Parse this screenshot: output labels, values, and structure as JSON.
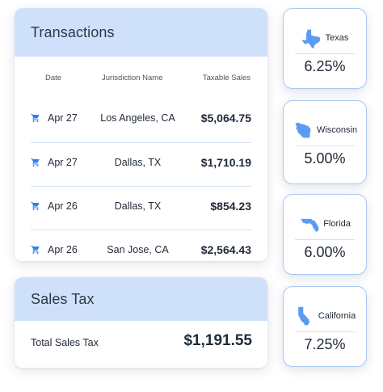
{
  "transactions": {
    "title": "Transactions",
    "columns": {
      "date": "Date",
      "jurisdiction": "Jurisdiction Name",
      "taxable_sales": "Taxable Sales"
    },
    "rows": [
      {
        "icon": "shopping-cart-icon",
        "date": "Apr 27",
        "jurisdiction": "Los Angeles, CA",
        "amount": "$5,064.75"
      },
      {
        "icon": "shopping-cart-icon",
        "date": "Apr 27",
        "jurisdiction": "Dallas, TX",
        "amount": "$1,710.19"
      },
      {
        "icon": "shopping-cart-icon",
        "date": "Apr 26",
        "jurisdiction": "Dallas, TX",
        "amount": "$854.23"
      },
      {
        "icon": "shopping-cart-icon",
        "date": "Apr 26",
        "jurisdiction": "San Jose, CA",
        "amount": "$2,564.43"
      }
    ]
  },
  "sales_tax": {
    "title": "Sales Tax",
    "total_label": "Total Sales Tax",
    "total_value": "$1,191.55"
  },
  "states": [
    {
      "name": "Texas",
      "rate": "6.25%",
      "icon": "texas-map-icon"
    },
    {
      "name": "Wisconsin",
      "rate": "5.00%",
      "icon": "wisconsin-map-icon"
    },
    {
      "name": "Florida",
      "rate": "6.00%",
      "icon": "florida-map-icon"
    },
    {
      "name": "California",
      "rate": "7.25%",
      "icon": "california-map-icon"
    }
  ],
  "colors": {
    "accent": "#2f7ff0",
    "map_fill": "#5a9cf4",
    "header_bg": "#cfe0fb",
    "card_border": "#a9c8f0"
  }
}
